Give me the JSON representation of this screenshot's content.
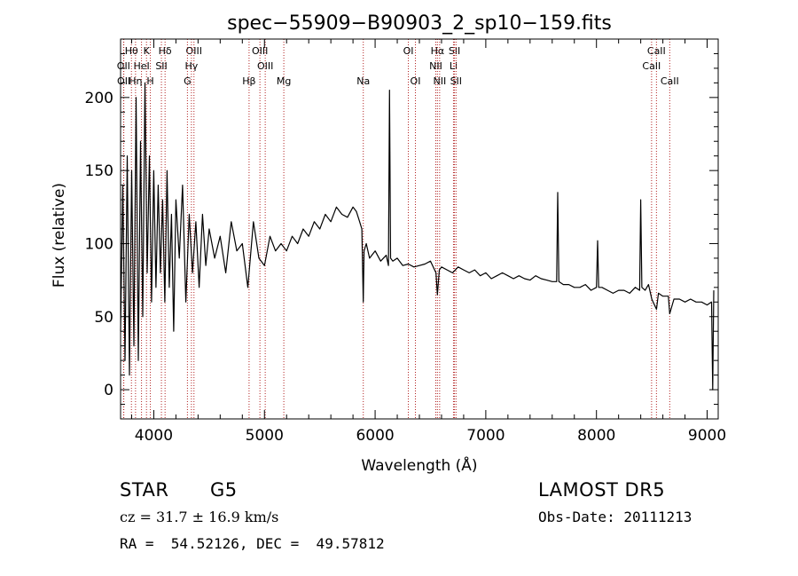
{
  "chart_data": {
    "type": "line",
    "title": "spec−55909−B90903_2_sp10−159.fits",
    "xlabel": "Wavelength (Å)",
    "ylabel": "Flux (relative)",
    "xlim": [
      3700,
      9100
    ],
    "ylim": [
      -20,
      240
    ],
    "xticks": [
      4000,
      5000,
      6000,
      7000,
      8000,
      9000
    ],
    "yticks": [
      0,
      50,
      100,
      150,
      200
    ],
    "grid": false,
    "legend": "none",
    "line_color": "#000000",
    "marker_color": "#b22222",
    "series": [
      {
        "x": [
          3700,
          3720,
          3740,
          3760,
          3780,
          3800,
          3820,
          3840,
          3860,
          3880,
          3900,
          3920,
          3940,
          3960,
          3980,
          4000,
          4020,
          4040,
          4060,
          4080,
          4100,
          4120,
          4140,
          4160,
          4180,
          4200,
          4230,
          4260,
          4290,
          4320,
          4350,
          4380,
          4410,
          4440,
          4470,
          4500,
          4550,
          4600,
          4650,
          4700,
          4750,
          4800,
          4850,
          4900,
          4950,
          5000,
          5050,
          5100,
          5150,
          5200,
          5250,
          5300,
          5350,
          5400,
          5450,
          5500,
          5550,
          5600,
          5650,
          5700,
          5750,
          5800,
          5830,
          5860,
          5880,
          5893,
          5900,
          5920,
          5950,
          6000,
          6050,
          6100,
          6120,
          6130,
          6140,
          6160,
          6200,
          6250,
          6300,
          6350,
          6400,
          6450,
          6500,
          6550,
          6563,
          6580,
          6600,
          6650,
          6700,
          6750,
          6800,
          6850,
          6900,
          6950,
          7000,
          7050,
          7100,
          7150,
          7200,
          7250,
          7300,
          7350,
          7400,
          7450,
          7500,
          7550,
          7600,
          7640,
          7650,
          7660,
          7700,
          7750,
          7800,
          7850,
          7900,
          7950,
          8000,
          8010,
          8020,
          8050,
          8100,
          8150,
          8200,
          8250,
          8300,
          8350,
          8390,
          8400,
          8410,
          8440,
          8470,
          8500,
          8542,
          8560,
          8600,
          8650,
          8662,
          8700,
          8750,
          8800,
          8850,
          8900,
          8950,
          9000,
          9040,
          9050,
          9060
        ],
        "y": [
          40,
          140,
          20,
          160,
          10,
          150,
          30,
          200,
          20,
          170,
          50,
          210,
          80,
          160,
          60,
          150,
          70,
          140,
          80,
          130,
          60,
          150,
          70,
          120,
          40,
          130,
          90,
          140,
          60,
          120,
          80,
          115,
          70,
          120,
          85,
          110,
          90,
          105,
          80,
          115,
          95,
          100,
          70,
          115,
          90,
          85,
          105,
          95,
          100,
          95,
          105,
          100,
          110,
          105,
          115,
          110,
          120,
          115,
          125,
          120,
          118,
          125,
          122,
          115,
          110,
          60,
          95,
          100,
          90,
          95,
          88,
          92,
          85,
          205,
          90,
          88,
          90,
          85,
          86,
          84,
          85,
          86,
          88,
          80,
          65,
          82,
          84,
          82,
          80,
          84,
          82,
          80,
          82,
          78,
          80,
          76,
          78,
          80,
          78,
          76,
          78,
          76,
          75,
          78,
          76,
          75,
          74,
          74,
          135,
          74,
          72,
          72,
          70,
          70,
          72,
          68,
          70,
          102,
          70,
          70,
          68,
          66,
          68,
          68,
          66,
          70,
          68,
          130,
          70,
          68,
          72,
          62,
          55,
          66,
          64,
          64,
          52,
          62,
          62,
          60,
          62,
          60,
          60,
          58,
          60,
          0,
          68
        ]
      }
    ],
    "line_markers": [
      {
        "name": "Hθ",
        "x": 3798,
        "row": 0
      },
      {
        "name": "K",
        "x": 3934,
        "row": 0
      },
      {
        "name": "Hδ",
        "x": 4102,
        "row": 0
      },
      {
        "name": "OIII",
        "x": 4363,
        "row": 0
      },
      {
        "name": "OIII",
        "x": 4959,
        "row": 0
      },
      {
        "name": "OI",
        "x": 6300,
        "row": 0
      },
      {
        "name": "Hα",
        "x": 6563,
        "row": 0
      },
      {
        "name": "SII",
        "x": 6717,
        "row": 0
      },
      {
        "name": "CaII",
        "x": 8542,
        "row": 0
      },
      {
        "name": "OII",
        "x": 3727,
        "row": 1
      },
      {
        "name": "HeI",
        "x": 3889,
        "row": 1
      },
      {
        "name": "SII",
        "x": 4069,
        "row": 1
      },
      {
        "name": "Hγ",
        "x": 4340,
        "row": 1
      },
      {
        "name": "OIII",
        "x": 5007,
        "row": 1
      },
      {
        "name": "NII",
        "x": 6548,
        "row": 1
      },
      {
        "name": "Li",
        "x": 6708,
        "row": 1
      },
      {
        "name": "CaII",
        "x": 8498,
        "row": 1
      },
      {
        "name": "OII",
        "x": 3729,
        "row": 2
      },
      {
        "name": "Hη",
        "x": 3835,
        "row": 2
      },
      {
        "name": "H",
        "x": 3969,
        "row": 2
      },
      {
        "name": "G",
        "x": 4304,
        "row": 2
      },
      {
        "name": "Hβ",
        "x": 4861,
        "row": 2
      },
      {
        "name": "Mg",
        "x": 5175,
        "row": 2
      },
      {
        "name": "Na",
        "x": 5893,
        "row": 2
      },
      {
        "name": "OI",
        "x": 6364,
        "row": 2
      },
      {
        "name": "NII",
        "x": 6583,
        "row": 2
      },
      {
        "name": "SII",
        "x": 6731,
        "row": 2
      },
      {
        "name": "CaII",
        "x": 8662,
        "row": 2
      }
    ]
  },
  "info": {
    "class": "STAR",
    "subclass": "G5",
    "survey": "LAMOST DR5",
    "cz_label": "cz = 31.7 ± 16.9 km/s",
    "obs_date": "Obs-Date: 20111213",
    "radec": "RA =  54.52126, DEC =  49.57812"
  }
}
